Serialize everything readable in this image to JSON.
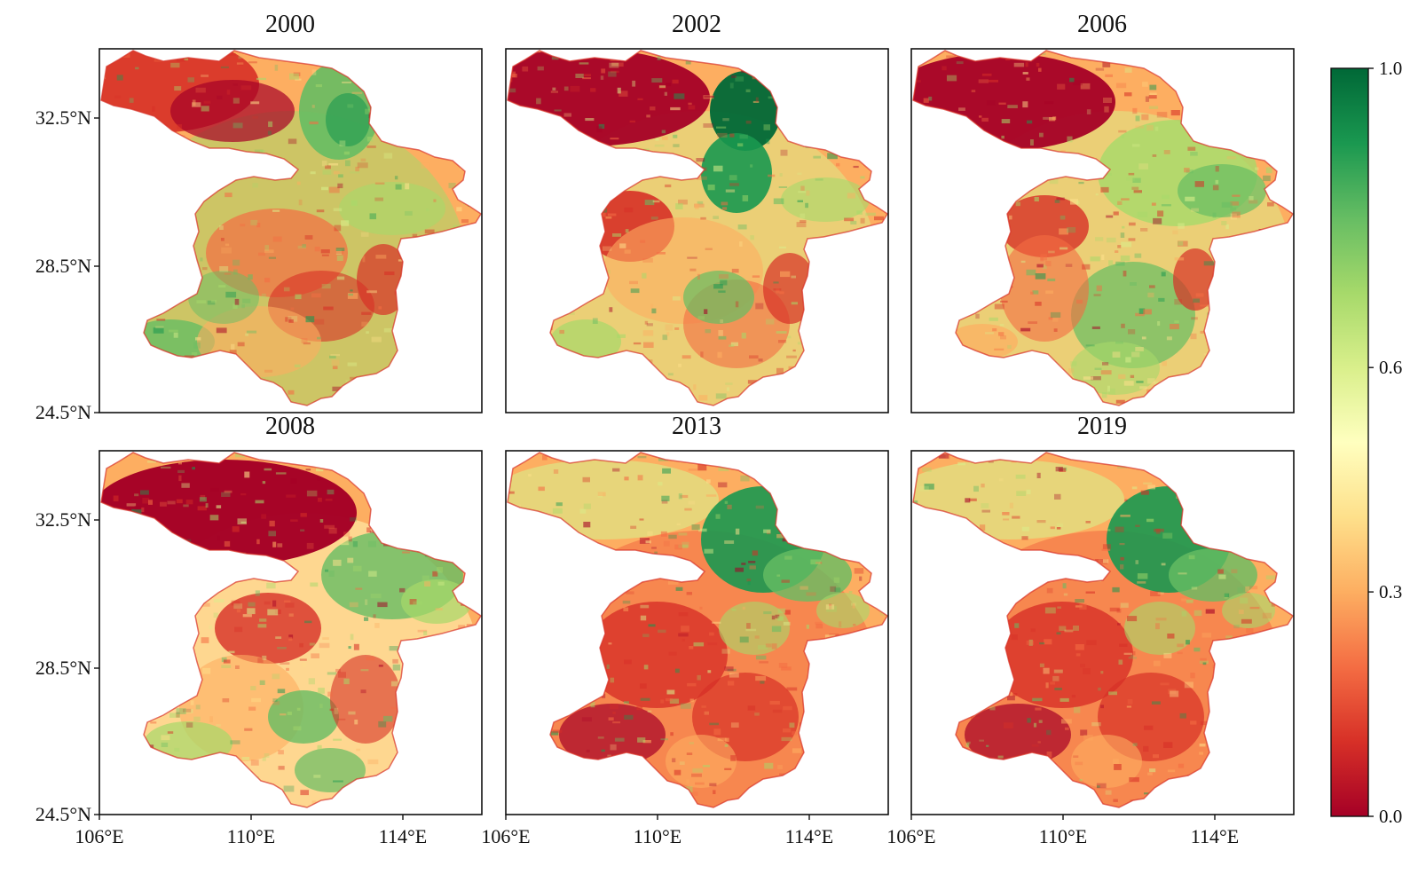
{
  "panels": [
    {
      "year": "2000",
      "map_pattern": "red-northwest-mixed-south"
    },
    {
      "year": "2002",
      "map_pattern": "red-northwest-green-northcentral"
    },
    {
      "year": "2006",
      "map_pattern": "red-northwest-greener-east"
    },
    {
      "year": "2008",
      "map_pattern": "deep-red-northwest-mixed"
    },
    {
      "year": "2013",
      "map_pattern": "mixed-northwest-green-northeast"
    },
    {
      "year": "2019",
      "map_pattern": "mixed-northwest-green-northeast"
    }
  ],
  "axes": {
    "y_ticks": [
      "32.5°N",
      "28.5°N",
      "24.5°N"
    ],
    "x_ticks": [
      "106°E",
      "110°E",
      "114°E"
    ]
  },
  "colorbar": {
    "ticks": [
      "1.0",
      "0.6",
      "0.3",
      "0.0"
    ],
    "tick_values": [
      1.0,
      0.6,
      0.3,
      0.0
    ],
    "min": 0.0,
    "max": 1.0,
    "colormap": "RdYlGn",
    "colors": [
      "#a50026",
      "#d73027",
      "#f46d43",
      "#fdae61",
      "#fee08b",
      "#ffffbf",
      "#d9ef8b",
      "#a6d96a",
      "#66bd63",
      "#1a9850",
      "#006837"
    ]
  }
}
